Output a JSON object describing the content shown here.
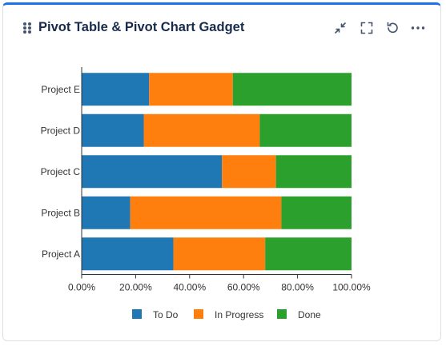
{
  "gadget": {
    "title": "Pivot Table & Pivot Chart Gadget",
    "icons": [
      "drag-handle-icon",
      "collapse-icon",
      "fullscreen-icon",
      "refresh-icon",
      "more-icon"
    ]
  },
  "colors": {
    "accent": "#1a73e8",
    "todo": "#1f77b4",
    "in_progress": "#ff7f0e",
    "done": "#2ca02c"
  },
  "chart_data": {
    "type": "bar",
    "orientation": "horizontal",
    "stacked": true,
    "categories": [
      "Project E",
      "Project D",
      "Project C",
      "Project B",
      "Project A"
    ],
    "series": [
      {
        "name": "To Do",
        "values": [
          25,
          23,
          52,
          18,
          34
        ]
      },
      {
        "name": "In Progress",
        "values": [
          31,
          43,
          20,
          56,
          34
        ]
      },
      {
        "name": "Done",
        "values": [
          44,
          34,
          28,
          26,
          32
        ]
      }
    ],
    "xlim": [
      0,
      100
    ],
    "xticks": [
      "0.00%",
      "20.00%",
      "40.00%",
      "60.00%",
      "80.00%",
      "100.00%"
    ],
    "grid": false,
    "legend": "bottom"
  }
}
